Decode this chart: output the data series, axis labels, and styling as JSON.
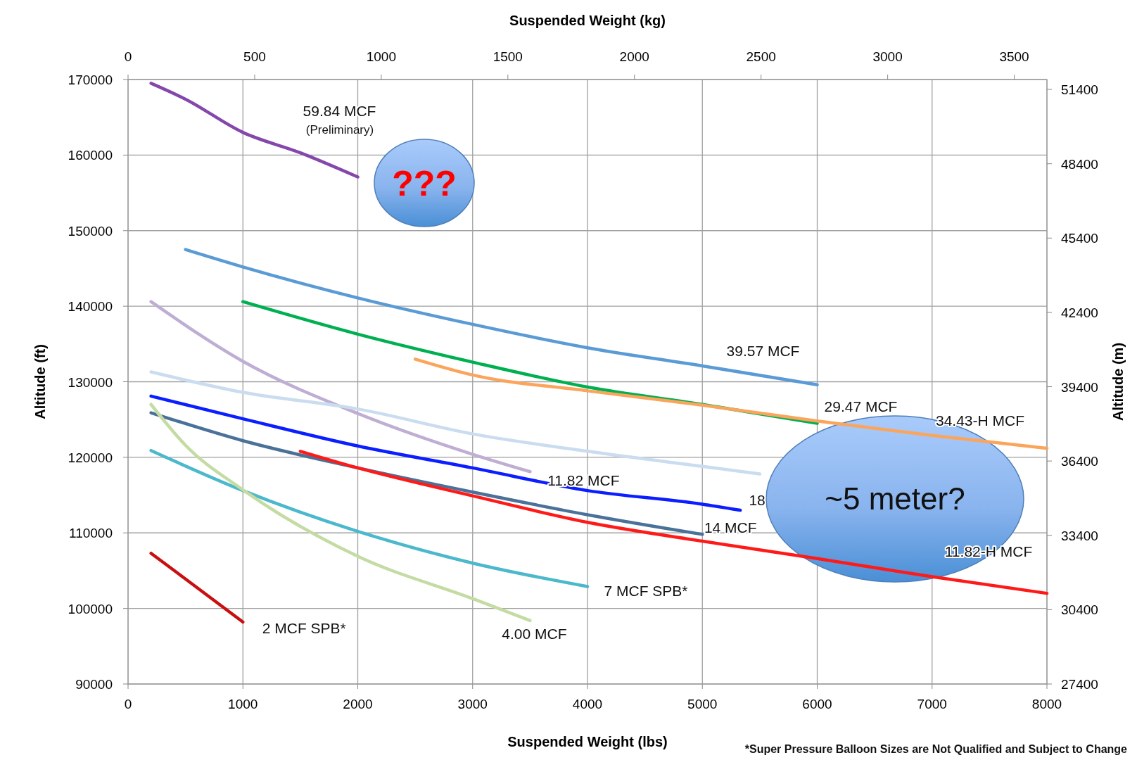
{
  "chart_data": {
    "type": "line",
    "xlabel": "Suspended Weight (lbs)",
    "x2label": "Suspended Weight (kg)",
    "ylabel": "Altitude (ft)",
    "y2label": "Altitude (m)",
    "xlim": [
      0,
      8000
    ],
    "xticks": [
      0,
      1000,
      2000,
      3000,
      4000,
      5000,
      6000,
      7000,
      8000
    ],
    "x2lim": [
      0,
      3629
    ],
    "x2ticks": [
      0,
      500,
      1000,
      1500,
      2000,
      2500,
      3000,
      3500
    ],
    "ylim": [
      90000,
      170000
    ],
    "yticks": [
      90000,
      100000,
      110000,
      120000,
      130000,
      140000,
      150000,
      160000,
      170000
    ],
    "y2lim": [
      27400,
      51800
    ],
    "y2ticks": [
      27400,
      30400,
      33400,
      36400,
      39400,
      42400,
      45400,
      48400,
      51400
    ],
    "grid": true,
    "marker": "none",
    "line_style": "solid",
    "series": [
      {
        "name": "59.84 MCF",
        "color": "#8447ac",
        "x": [
          200,
          500,
          1000,
          1500,
          2000
        ],
        "values": [
          169500,
          167400,
          163000,
          160300,
          157100
        ]
      },
      {
        "name": "39.57 MCF",
        "color": "#5b9bd5",
        "x": [
          500,
          1000,
          2000,
          3000,
          4000,
          5000,
          6000
        ],
        "values": [
          147500,
          145200,
          141100,
          137600,
          134500,
          132100,
          129600
        ]
      },
      {
        "name": "29.47 MCF",
        "color": "#00b050",
        "x": [
          1000,
          2000,
          3000,
          4000,
          5000,
          6000
        ],
        "values": [
          140600,
          136300,
          132600,
          129300,
          127000,
          124500
        ]
      },
      {
        "name": "34.43-H MCF",
        "color": "#fba55c",
        "x": [
          2500,
          3000,
          4000,
          5000,
          6000,
          7000,
          8000
        ],
        "values": [
          133000,
          130900,
          128800,
          126900,
          124800,
          122900,
          121200
        ]
      },
      {
        "name": "11.82 MCF",
        "color": "#bfaed3",
        "x": [
          200,
          1000,
          2000,
          3000,
          3500
        ],
        "values": [
          140600,
          132700,
          125800,
          120400,
          118100
        ]
      },
      {
        "color": "#cadcf0",
        "x": [
          200,
          1000,
          2000,
          3000,
          4000,
          5000,
          5500
        ],
        "values": [
          131300,
          128600,
          126400,
          123100,
          120800,
          118800,
          117800
        ]
      },
      {
        "name": "18",
        "color": "#0a1eff",
        "x": [
          200,
          1000,
          2000,
          3000,
          4000,
          5000,
          5330
        ],
        "values": [
          128100,
          125100,
          121500,
          118600,
          115600,
          113800,
          113000
        ]
      },
      {
        "name": "14 MCF",
        "color": "#4a7199",
        "x": [
          200,
          1000,
          2000,
          3000,
          4000,
          5000
        ],
        "values": [
          125900,
          122200,
          118600,
          115400,
          112400,
          109800
        ]
      },
      {
        "name": "11.82-H MCF",
        "color": "#ff1a1a",
        "x": [
          1500,
          2000,
          3000,
          4000,
          5000,
          6000,
          7000,
          8000
        ],
        "values": [
          120800,
          118600,
          114900,
          111400,
          108900,
          106600,
          104200,
          102000
        ]
      },
      {
        "name": "7 MCF SPB*",
        "color": "#4bb8cc",
        "x": [
          200,
          1000,
          2000,
          3000,
          4000
        ],
        "values": [
          120900,
          115600,
          110200,
          106000,
          102900
        ]
      },
      {
        "name": "4.00 MCF",
        "color": "#c5dba4",
        "x": [
          200,
          500,
          1000,
          2000,
          3000,
          3500
        ],
        "values": [
          127000,
          121600,
          115700,
          106900,
          101300,
          98400
        ]
      },
      {
        "name": "2 MCF SPB*",
        "color": "#c81010",
        "x": [
          200,
          500,
          1000
        ],
        "values": [
          107300,
          103900,
          98200
        ]
      }
    ],
    "annotations": [
      "???",
      "~5 meter?",
      "(Preliminary)",
      "*Super Pressure Balloon Sizes  are Not Qualified and Subject to Change"
    ]
  }
}
